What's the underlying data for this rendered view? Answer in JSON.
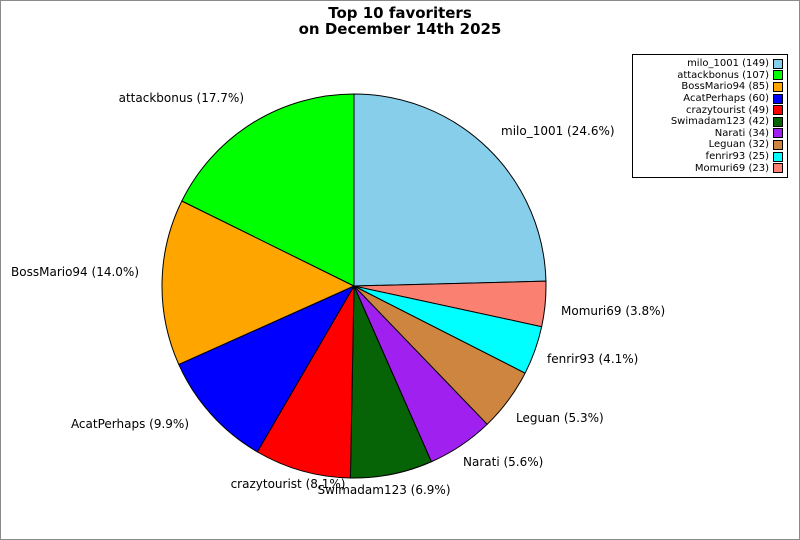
{
  "title": {
    "line1": "Top 10 favoriters",
    "line2": "on December 14th 2025"
  },
  "chart_data": {
    "type": "pie",
    "title": "Top 10 favoriters on December 14th 2025",
    "legend_position": "upper right",
    "start_at": "12 o'clock",
    "direction_of_first_slice": "clockwise",
    "slices": [
      {
        "name": "milo_1001",
        "count": 149,
        "pct": 24.6,
        "color": "#87CEEB",
        "pie_label": "milo_1001 (24.6%)",
        "legend_label": "milo_1001 (149)"
      },
      {
        "name": "attackbonus",
        "count": 107,
        "pct": 17.7,
        "color": "#00FF00",
        "pie_label": "attackbonus (17.7%)",
        "legend_label": "attackbonus (107)"
      },
      {
        "name": "BossMario94",
        "count": 85,
        "pct": 14.0,
        "color": "#FFA500",
        "pie_label": "BossMario94 (14.0%)",
        "legend_label": "BossMario94 (85)"
      },
      {
        "name": "AcatPerhaps",
        "count": 60,
        "pct": 9.9,
        "color": "#0000FF",
        "pie_label": "AcatPerhaps (9.9%)",
        "legend_label": "AcatPerhaps (60)"
      },
      {
        "name": "crazytourist",
        "count": 49,
        "pct": 8.1,
        "color": "#FF0000",
        "pie_label": "crazytourist (8.1%)",
        "legend_label": "crazytourist (49)"
      },
      {
        "name": "Swimadam123",
        "count": 42,
        "pct": 6.9,
        "color": "#066306",
        "pie_label": "Swimadam123 (6.9%)",
        "legend_label": "Swimadam123 (42)"
      },
      {
        "name": "Narati",
        "count": 34,
        "pct": 5.6,
        "color": "#A020F0",
        "pie_label": "Narati (5.6%)",
        "legend_label": "Narati (34)"
      },
      {
        "name": "Leguan",
        "count": 32,
        "pct": 5.3,
        "color": "#CD853F",
        "pie_label": "Leguan (5.3%)",
        "legend_label": "Leguan (32)"
      },
      {
        "name": "fenrir93",
        "count": 25,
        "pct": 4.1,
        "color": "#00FFFF",
        "pie_label": "fenrir93 (4.1%)",
        "legend_label": "fenrir93 (25)"
      },
      {
        "name": "Momuri69",
        "count": 23,
        "pct": 3.8,
        "color": "#FA8072",
        "pie_label": "Momuri69 (3.8%)",
        "legend_label": "Momuri69 (23)"
      }
    ]
  }
}
